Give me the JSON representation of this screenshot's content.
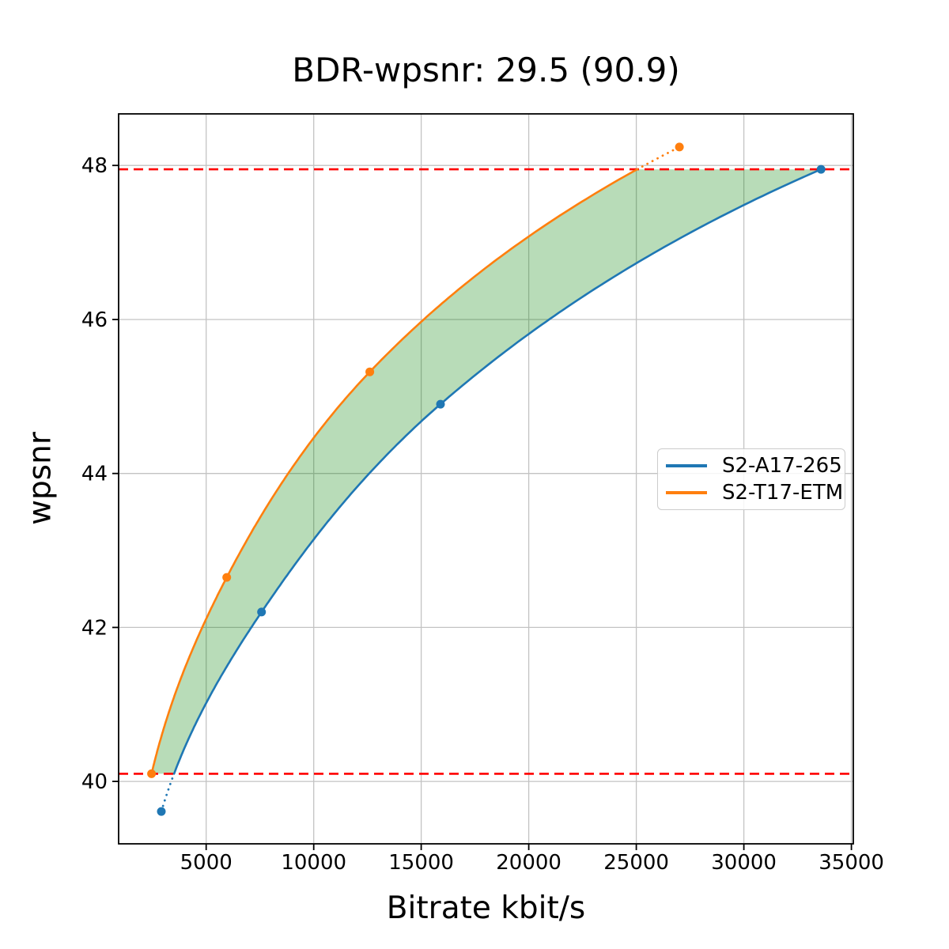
{
  "page": {
    "background": "#ffffff"
  },
  "chart_data": {
    "type": "line",
    "title": "BDR-wpsnr: 29.5 (90.9)",
    "xlabel": "Bitrate kbit/s",
    "ylabel": "wpsnr",
    "xlim": [
      930,
      35090
    ],
    "ylim": [
      39.19,
      48.67
    ],
    "x_ticks": [
      5000,
      10000,
      15000,
      20000,
      25000,
      30000,
      35000
    ],
    "y_ticks": [
      40,
      42,
      44,
      46,
      48
    ],
    "grid": true,
    "grid_color": "#c3c3c3",
    "axis_color": "#000000",
    "legend_position": "center-right",
    "series": [
      {
        "name": "S2-A17-265",
        "color": "#1f77b4",
        "points": [
          [
            2915,
            39.61
          ],
          [
            7575,
            42.2
          ],
          [
            15895,
            44.9
          ],
          [
            33590,
            47.95
          ]
        ]
      },
      {
        "name": "S2-T17-ETM",
        "color": "#ff7f0e",
        "points": [
          [
            2460,
            40.1
          ],
          [
            5955,
            42.65
          ],
          [
            12610,
            45.32
          ],
          [
            27005,
            48.24
          ]
        ]
      }
    ],
    "overlap_lines": {
      "y_low": 40.1,
      "y_high": 47.95,
      "color": "#ff0000",
      "style": "dashed"
    },
    "shaded_area": {
      "fill_color": "#008000",
      "fill_opacity": 0.28
    },
    "curve_style": {
      "solid_within_overlap": true,
      "dotted_outside_overlap": true
    }
  }
}
